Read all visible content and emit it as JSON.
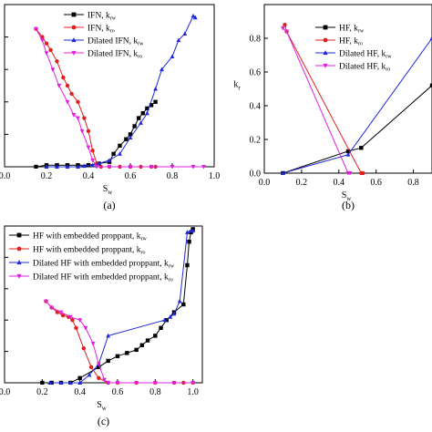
{
  "chart_data": [
    {
      "id": "a",
      "type": "line",
      "caption": "(a)",
      "xlabel": "S",
      "xlabel_sub": "w",
      "ylabel": "",
      "xlim": [
        0.0,
        1.0
      ],
      "ylim": [
        0.0,
        1.0
      ],
      "x_ticks": [
        "0.0",
        "0.2",
        "0.4",
        "0.6",
        "0.8",
        "1.0"
      ],
      "y_ticks": [],
      "legend_position": "top-right",
      "series": [
        {
          "name": "IFN, k",
          "sub": "rw",
          "color": "#000000",
          "marker": "square",
          "points": [
            [
              0.15,
              0.0
            ],
            [
              0.2,
              0.01
            ],
            [
              0.25,
              0.01
            ],
            [
              0.3,
              0.01
            ],
            [
              0.35,
              0.01
            ],
            [
              0.4,
              0.01
            ],
            [
              0.45,
              0.02
            ],
            [
              0.5,
              0.03
            ],
            [
              0.52,
              0.08
            ],
            [
              0.55,
              0.13
            ],
            [
              0.58,
              0.17
            ],
            [
              0.6,
              0.2
            ],
            [
              0.62,
              0.25
            ],
            [
              0.64,
              0.3
            ],
            [
              0.66,
              0.33
            ],
            [
              0.68,
              0.36
            ],
            [
              0.7,
              0.38
            ],
            [
              0.72,
              0.4
            ]
          ]
        },
        {
          "name": "IFN, k",
          "sub": "ro",
          "color": "#e02020",
          "marker": "circle",
          "points": [
            [
              0.15,
              0.85
            ],
            [
              0.18,
              0.8
            ],
            [
              0.2,
              0.76
            ],
            [
              0.22,
              0.72
            ],
            [
              0.25,
              0.65
            ],
            [
              0.28,
              0.55
            ],
            [
              0.3,
              0.5
            ],
            [
              0.32,
              0.45
            ],
            [
              0.35,
              0.4
            ],
            [
              0.38,
              0.3
            ],
            [
              0.4,
              0.22
            ],
            [
              0.42,
              0.1
            ],
            [
              0.44,
              0.02
            ],
            [
              0.46,
              0.0
            ],
            [
              0.5,
              0.0
            ],
            [
              0.55,
              0.0
            ],
            [
              0.6,
              0.0
            ],
            [
              0.65,
              0.0
            ],
            [
              0.7,
              0.0
            ],
            [
              0.72,
              0.0
            ]
          ]
        },
        {
          "name": "Dilated IFN, k",
          "sub": "rw",
          "color": "#1f28d8",
          "marker": "triangle-up",
          "points": [
            [
              0.2,
              0.0
            ],
            [
              0.25,
              0.0
            ],
            [
              0.3,
              0.0
            ],
            [
              0.35,
              0.0
            ],
            [
              0.38,
              0.005
            ],
            [
              0.42,
              0.01
            ],
            [
              0.45,
              0.02
            ],
            [
              0.5,
              0.04
            ],
            [
              0.55,
              0.08
            ],
            [
              0.6,
              0.18
            ],
            [
              0.65,
              0.27
            ],
            [
              0.68,
              0.33
            ],
            [
              0.72,
              0.48
            ],
            [
              0.75,
              0.6
            ],
            [
              0.8,
              0.68
            ],
            [
              0.83,
              0.78
            ],
            [
              0.86,
              0.82
            ],
            [
              0.9,
              0.93
            ],
            [
              0.91,
              0.92
            ]
          ]
        },
        {
          "name": "Dilated IFN, k",
          "sub": "ro",
          "color": "#e020e0",
          "marker": "triangle-down",
          "points": [
            [
              0.15,
              0.85
            ],
            [
              0.18,
              0.78
            ],
            [
              0.2,
              0.7
            ],
            [
              0.23,
              0.6
            ],
            [
              0.26,
              0.5
            ],
            [
              0.3,
              0.4
            ],
            [
              0.33,
              0.32
            ],
            [
              0.35,
              0.3
            ],
            [
              0.37,
              0.22
            ],
            [
              0.4,
              0.12
            ],
            [
              0.42,
              0.04
            ],
            [
              0.44,
              0.0
            ],
            [
              0.5,
              0.0
            ],
            [
              0.6,
              0.0
            ],
            [
              0.7,
              0.0
            ],
            [
              0.8,
              0.0
            ],
            [
              0.9,
              0.0
            ],
            [
              0.95,
              0.0
            ]
          ]
        }
      ]
    },
    {
      "id": "b",
      "type": "line",
      "caption": "(b)",
      "xlabel": "S",
      "xlabel_sub": "w",
      "ylabel": "k",
      "ylabel_sub": "r",
      "xlim": [
        0.0,
        0.9
      ],
      "ylim": [
        0.0,
        1.0
      ],
      "x_ticks": [
        "0.0",
        "0.2",
        "0.4",
        "0.6",
        "0.8"
      ],
      "y_ticks": [
        "0.0",
        "0.2",
        "0.4",
        "0.6",
        "0.8"
      ],
      "legend_position": "top-right",
      "series": [
        {
          "name": "HF, k",
          "sub": "rw",
          "color": "#000000",
          "marker": "square",
          "points": [
            [
              0.1,
              0.0
            ],
            [
              0.45,
              0.13
            ],
            [
              0.52,
              0.15
            ],
            [
              0.9,
              0.52
            ]
          ]
        },
        {
          "name": "HF, k",
          "sub": "ro",
          "color": "#e02020",
          "marker": "circle",
          "points": [
            [
              0.11,
              0.88
            ],
            [
              0.12,
              0.84
            ],
            [
              0.52,
              0.0
            ],
            [
              0.53,
              0.0
            ]
          ]
        },
        {
          "name": "Dilated HF, k",
          "sub": "rw",
          "color": "#1f28d8",
          "marker": "triangle-up",
          "points": [
            [
              0.1,
              0.0
            ],
            [
              0.45,
              0.11
            ],
            [
              0.9,
              0.8
            ]
          ]
        },
        {
          "name": "Dilated HF, k",
          "sub": "ro",
          "color": "#e020e0",
          "marker": "triangle-down",
          "points": [
            [
              0.1,
              0.86
            ],
            [
              0.12,
              0.84
            ],
            [
              0.45,
              0.0
            ],
            [
              0.46,
              0.0
            ]
          ]
        }
      ]
    },
    {
      "id": "c",
      "type": "line",
      "caption": "(c)",
      "xlabel": "S",
      "xlabel_sub": "w",
      "ylabel": "",
      "xlim": [
        0.0,
        1.05
      ],
      "ylim": [
        0.0,
        1.0
      ],
      "x_ticks": [
        "0.0",
        "0.2",
        "0.4",
        "0.6",
        "0.8",
        "1.0"
      ],
      "y_ticks": [],
      "legend_position": "top-left",
      "series": [
        {
          "name": "HF with embedded proppant, k",
          "sub": "rw",
          "color": "#000000",
          "marker": "square",
          "points": [
            [
              0.2,
              0.0
            ],
            [
              0.25,
              0.0
            ],
            [
              0.3,
              0.0
            ],
            [
              0.35,
              0.0
            ],
            [
              0.4,
              0.03
            ],
            [
              0.5,
              0.1
            ],
            [
              0.55,
              0.14
            ],
            [
              0.6,
              0.17
            ],
            [
              0.65,
              0.19
            ],
            [
              0.7,
              0.21
            ],
            [
              0.73,
              0.24
            ],
            [
              0.76,
              0.27
            ],
            [
              0.8,
              0.3
            ],
            [
              0.83,
              0.35
            ],
            [
              0.86,
              0.4
            ],
            [
              0.9,
              0.45
            ],
            [
              0.95,
              0.5
            ],
            [
              0.97,
              0.75
            ],
            [
              0.98,
              0.9
            ],
            [
              0.99,
              0.96
            ],
            [
              1.0,
              0.98
            ]
          ]
        },
        {
          "name": "HF with embedded proppant, k",
          "sub": "ro",
          "color": "#e02020",
          "marker": "circle",
          "points": [
            [
              0.22,
              0.52
            ],
            [
              0.25,
              0.48
            ],
            [
              0.28,
              0.45
            ],
            [
              0.31,
              0.43
            ],
            [
              0.34,
              0.42
            ],
            [
              0.36,
              0.4
            ],
            [
              0.38,
              0.35
            ],
            [
              0.42,
              0.22
            ],
            [
              0.46,
              0.1
            ],
            [
              0.5,
              0.03
            ],
            [
              0.55,
              0.0
            ],
            [
              0.6,
              0.0
            ],
            [
              0.7,
              0.0
            ],
            [
              0.8,
              0.0
            ],
            [
              0.9,
              0.0
            ],
            [
              0.95,
              0.0
            ],
            [
              1.0,
              0.0
            ]
          ]
        },
        {
          "name": "Dilated HF with embedded proppant, k",
          "sub": "rw",
          "color": "#1f28d8",
          "marker": "triangle-up",
          "points": [
            [
              0.24,
              0.0
            ],
            [
              0.3,
              0.0
            ],
            [
              0.35,
              0.0
            ],
            [
              0.4,
              0.0
            ],
            [
              0.45,
              0.05
            ],
            [
              0.5,
              0.12
            ],
            [
              0.55,
              0.3
            ],
            [
              0.85,
              0.4
            ],
            [
              0.88,
              0.42
            ],
            [
              0.9,
              0.44
            ],
            [
              0.93,
              0.52
            ],
            [
              0.97,
              0.96
            ],
            [
              0.99,
              0.97
            ],
            [
              1.0,
              0.97
            ]
          ]
        },
        {
          "name": "Dilated HF with embedded proppant, k",
          "sub": "ro",
          "color": "#e020e0",
          "marker": "triangle-down",
          "points": [
            [
              0.22,
              0.52
            ],
            [
              0.25,
              0.48
            ],
            [
              0.3,
              0.45
            ],
            [
              0.35,
              0.42
            ],
            [
              0.4,
              0.4
            ],
            [
              0.43,
              0.35
            ],
            [
              0.47,
              0.25
            ],
            [
              0.5,
              0.12
            ],
            [
              0.53,
              0.02
            ],
            [
              0.55,
              0.0
            ],
            [
              0.6,
              0.0
            ],
            [
              0.7,
              0.0
            ],
            [
              0.8,
              0.0
            ],
            [
              0.9,
              0.0
            ],
            [
              1.0,
              0.0
            ]
          ]
        }
      ]
    }
  ]
}
